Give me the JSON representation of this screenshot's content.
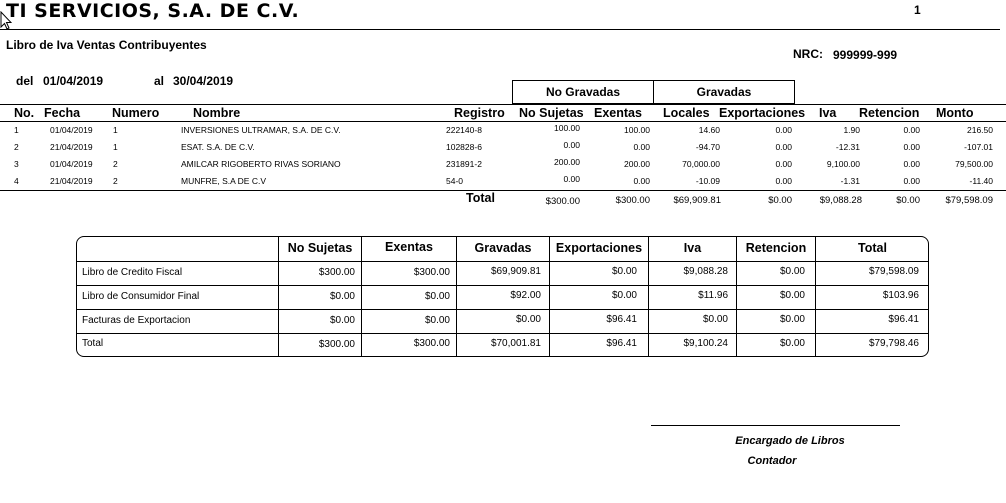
{
  "header": {
    "company": "TI SERVICIOS, S.A. DE C.V.",
    "page": "1",
    "subtitle": "Libro de Iva Ventas Contribuyentes",
    "nrc_label": "NRC:",
    "nrc_value": "999999-999",
    "del_label": "del",
    "del_value": "01/04/2019",
    "al_label": "al",
    "al_value": "30/04/2019",
    "group_no_gravadas": "No Gravadas",
    "group_gravadas": "Gravadas"
  },
  "columns": [
    "No.",
    "Fecha",
    "Numero",
    "Nombre",
    "Registro",
    "No Sujetas",
    "Exentas",
    "Locales",
    "Exportaciones",
    "Iva",
    "Retencion",
    "Monto"
  ],
  "rows": [
    {
      "no": "1",
      "fecha": "01/04/2019",
      "numero": "1",
      "nombre": "INVERSIONES ULTRAMAR, S.A. DE C.V.",
      "registro": "222140-8",
      "no_sujetas": "100.00",
      "exentas": "100.00",
      "locales": "14.60",
      "exportaciones": "0.00",
      "iva": "1.90",
      "retencion": "0.00",
      "monto": "216.50"
    },
    {
      "no": "2",
      "fecha": "21/04/2019",
      "numero": "1",
      "nombre": "ESAT. S.A. DE C.V.",
      "registro": "102828-6",
      "no_sujetas": "0.00",
      "exentas": "0.00",
      "locales": "-94.70",
      "exportaciones": "0.00",
      "iva": "-12.31",
      "retencion": "0.00",
      "monto": "-107.01"
    },
    {
      "no": "3",
      "fecha": "01/04/2019",
      "numero": "2",
      "nombre": "AMILCAR RIGOBERTO RIVAS SORIANO",
      "registro": "231891-2",
      "no_sujetas": "200.00",
      "exentas": "200.00",
      "locales": "70,000.00",
      "exportaciones": "0.00",
      "iva": "9,100.00",
      "retencion": "0.00",
      "monto": "79,500.00"
    },
    {
      "no": "4",
      "fecha": "21/04/2019",
      "numero": "2",
      "nombre": "MUNFRE, S.A DE C.V",
      "registro": "54-0",
      "no_sujetas": "0.00",
      "exentas": "0.00",
      "locales": "-10.09",
      "exportaciones": "0.00",
      "iva": "-1.31",
      "retencion": "0.00",
      "monto": "-11.40"
    }
  ],
  "totals": {
    "label": "Total",
    "no_sujetas": "$300.00",
    "exentas": "$300.00",
    "locales": "$69,909.81",
    "exportaciones": "$0.00",
    "iva": "$9,088.28",
    "retencion": "$0.00",
    "monto": "$79,598.09"
  },
  "summary": {
    "headers": [
      "No Sujetas",
      "Exentas",
      "Gravadas",
      "Exportaciones",
      "Iva",
      "Retencion",
      "Total"
    ],
    "rows": [
      {
        "label": "Libro de Credito Fiscal",
        "values": [
          "$300.00",
          "$300.00",
          "$69,909.81",
          "$0.00",
          "$9,088.28",
          "$0.00",
          "$79,598.09"
        ]
      },
      {
        "label": "Libro de Consumidor Final",
        "values": [
          "$0.00",
          "$0.00",
          "$92.00",
          "$0.00",
          "$11.96",
          "$0.00",
          "$103.96"
        ]
      },
      {
        "label": "Facturas de Exportacion",
        "values": [
          "$0.00",
          "$0.00",
          "$0.00",
          "$96.41",
          "$0.00",
          "$0.00",
          "$96.41"
        ]
      },
      {
        "label": "Total",
        "values": [
          "$300.00",
          "$300.00",
          "$70,001.81",
          "$96.41",
          "$9,100.24",
          "$0.00",
          "$79,798.46"
        ]
      }
    ]
  },
  "signature": {
    "line1": "Encargado de Libros",
    "line2": "Contador"
  },
  "icons": {
    "cursor": "mouse-pointer-icon"
  }
}
